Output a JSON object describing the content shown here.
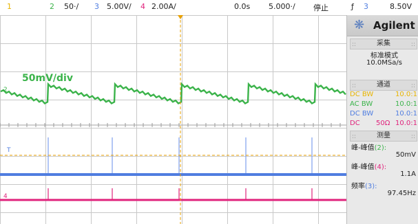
{
  "topbar": {
    "ch1_num": "1",
    "ch2_num": "2",
    "ch2_scale": "50‧/",
    "ch3_num": "3",
    "ch3_scale": "5.00V/",
    "ch4_num": "4",
    "ch4_scale": "2.00A/",
    "time_offset": "0.0s",
    "time_scale": "5.000‧/",
    "run_state": "停止",
    "trigger_icon": "ƒ",
    "trigger_source": "3",
    "trigger_level": "8.50V"
  },
  "colors": {
    "ch1": "#e8b400",
    "ch2": "#3bb34a",
    "ch3": "#4f7de0",
    "ch4": "#e0237c"
  },
  "waveform": {
    "ch2_label": "50mV/div",
    "markers": {
      "ch2": "2",
      "ch3": "T",
      "ch4": "4"
    }
  },
  "panel": {
    "brand": "Agilent",
    "acquire_title": "采集",
    "acquire_mode": "标准模式",
    "acquire_rate": "10.0MSa/s",
    "channels_title": "通道",
    "channels": [
      {
        "coupling": "DC BW",
        "mid": "",
        "value": "10.0:1"
      },
      {
        "coupling": "AC BW",
        "mid": "",
        "value": "10.0:1"
      },
      {
        "coupling": "DC BW",
        "mid": "",
        "value": "10.0:1"
      },
      {
        "coupling": "DC",
        "mid": "50Ω",
        "value": "10.0:1"
      }
    ],
    "measure_title": "测量",
    "measurements": [
      {
        "label": "峰-峰值",
        "ch": "(2):",
        "value": "50mV"
      },
      {
        "label": "峰-峰值",
        "ch": "(4):",
        "value": "1.1A"
      },
      {
        "label": "频率",
        "ch": "(3):",
        "value": "97.45Hz"
      }
    ]
  }
}
